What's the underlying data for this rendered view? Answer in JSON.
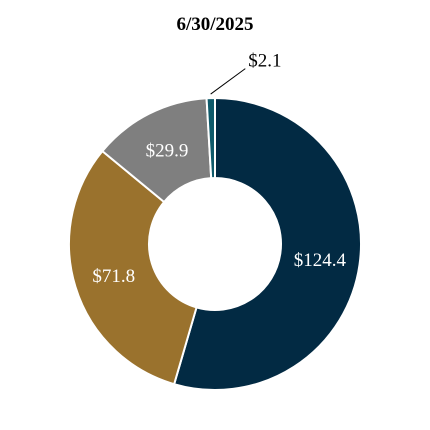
{
  "chart_data": {
    "type": "pie",
    "title": "6/30/2025",
    "slices": [
      {
        "label": "$124.4",
        "value": 124.4,
        "color": "#022a43",
        "label_color": "#ffffff"
      },
      {
        "label": "$71.8",
        "value": 71.8,
        "color": "#9a722d",
        "label_color": "#ffffff"
      },
      {
        "label": "$29.9",
        "value": 29.9,
        "color": "#7f7f7f",
        "label_color": "#ffffff"
      },
      {
        "label": "$2.1",
        "value": 2.1,
        "color": "#0e5a6a",
        "label_color": "#000000"
      }
    ],
    "start": "12 o'clock",
    "direction": "clockwise",
    "hole": true,
    "legend": "none"
  }
}
